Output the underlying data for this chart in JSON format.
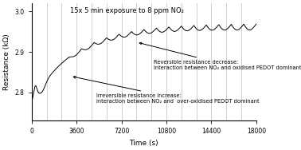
{
  "title": "15x 5 min exposure to 8 ppm NO₂",
  "xlabel": "Time (s)",
  "ylabel": "Resistance (kΩ)",
  "xlim": [
    0,
    18000
  ],
  "ylim": [
    2.73,
    3.02
  ],
  "yticks": [
    2.8,
    2.9,
    3.0
  ],
  "xticks": [
    0,
    3600,
    7200,
    10800,
    14400,
    18000
  ],
  "xtick_labels": [
    "0",
    "3600",
    "7200",
    "10800",
    "14400",
    "18000"
  ],
  "annotation1_text": "Reversible resistance decrease:\nInteraction between NO₂ and oxidised PEDOT dominant",
  "annotation2_text": "Irreversible resistance increase:\nInteraction between NO₂ and  over-oxidised PEDOT dominant",
  "vline_color": "#c8c8c8",
  "line_color": "#000000",
  "bg_color": "#ffffff",
  "num_cycles": 15,
  "cycle_duration": 1200
}
